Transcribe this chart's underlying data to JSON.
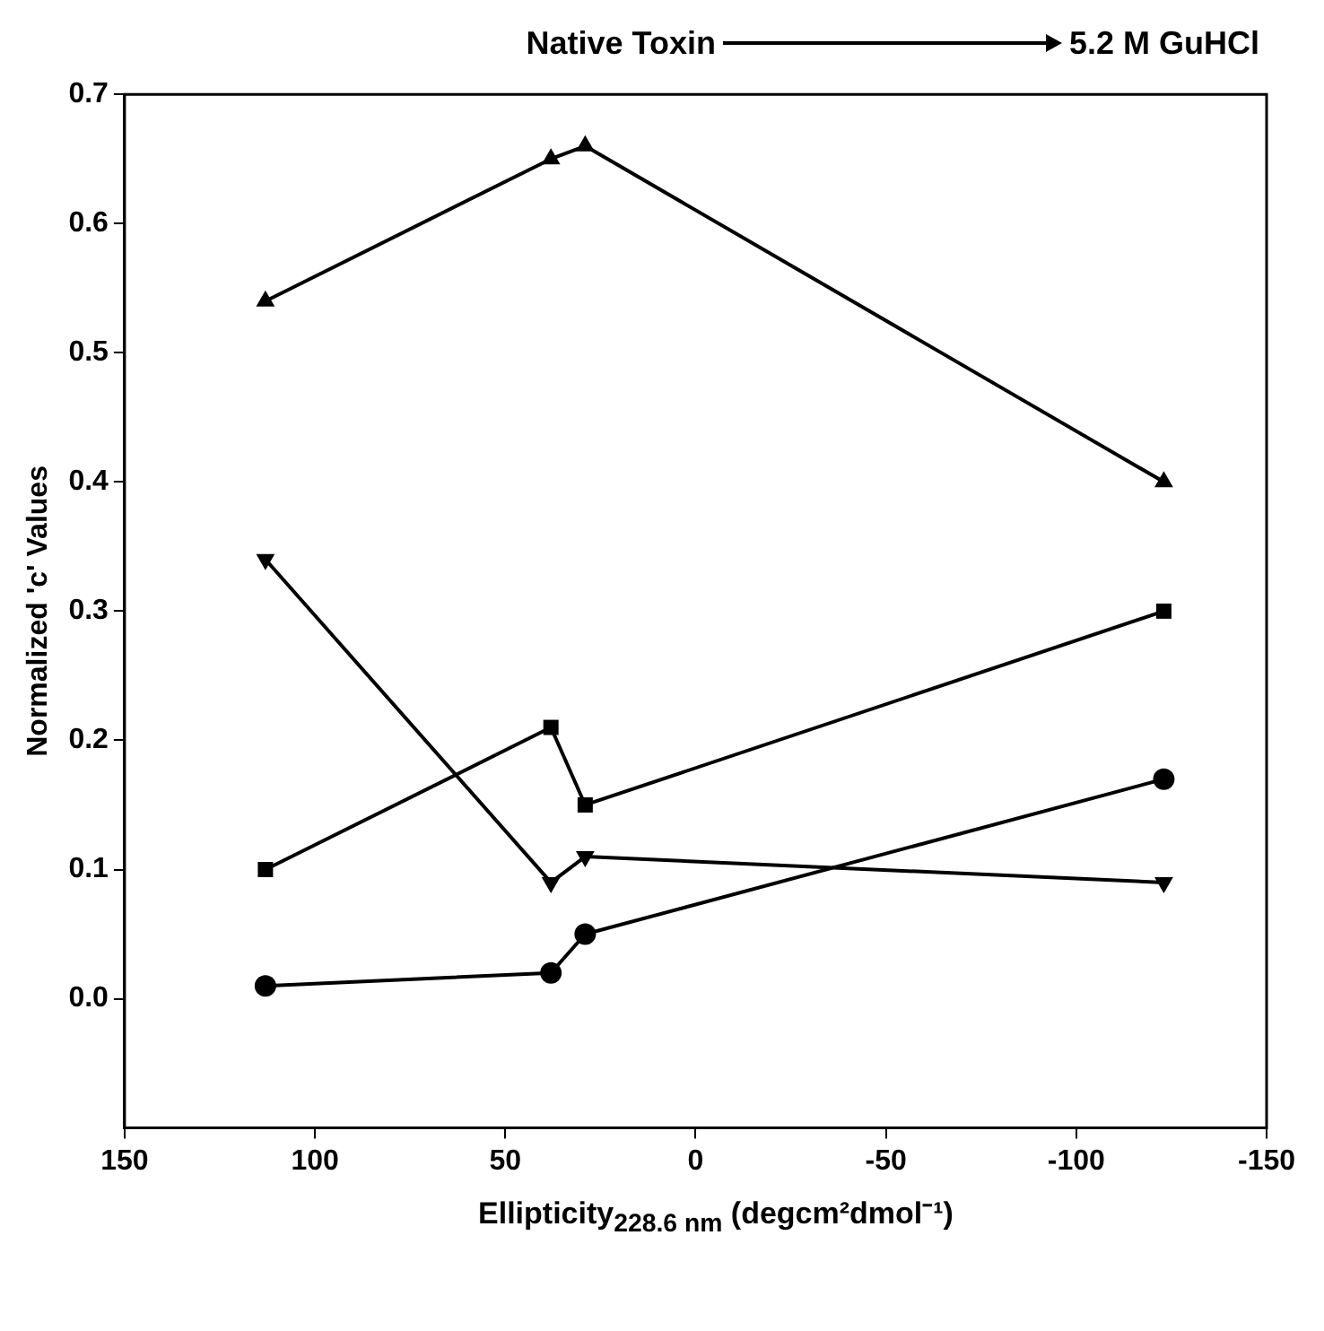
{
  "chart_data": {
    "type": "line",
    "annotations": [
      "Native Toxin",
      "5.2 M GuHCl"
    ],
    "xlabel": "Ellipticity$_{228.6 nm}$ (degcm²dmol⁻¹)",
    "ylabel": "Normalized 'c' Values",
    "x": [
      113,
      38,
      29,
      -123
    ],
    "series": [
      {
        "color": "#000000",
        "marker": "triangle",
        "values": [
          0.54,
          0.65,
          0.66,
          0.4
        ]
      },
      {
        "color": "#000000",
        "marker": "square",
        "values": [
          0.1,
          0.21,
          0.15,
          0.3
        ]
      },
      {
        "color": "#000000",
        "marker": "triangle_down",
        "values": [
          0.34,
          0.09,
          0.11,
          0.09
        ]
      },
      {
        "color": "#000000",
        "marker": "circle",
        "values": [
          0.01,
          0.02,
          0.05,
          0.17
        ]
      }
    ],
    "xlim": [
      150,
      -150
    ],
    "xticks": [
      150,
      100,
      50,
      0,
      -50,
      -100,
      -150
    ],
    "ylim": [
      -0.1,
      0.7
    ],
    "yticks": [
      {
        "value": 0,
        "label": "0.0"
      },
      {
        "value": 0.1,
        "label": "0.1"
      },
      {
        "value": 0.2,
        "label": "0.2"
      },
      {
        "value": 0.3,
        "label": "0.3"
      },
      {
        "value": 0.4,
        "label": "0.4"
      },
      {
        "value": 0.5,
        "label": "0.5"
      },
      {
        "value": 0.6,
        "label": "0.6"
      },
      {
        "value": 0.7,
        "label": "0.7"
      }
    ],
    "grid": false,
    "legend": false,
    "line_style": "solid"
  }
}
